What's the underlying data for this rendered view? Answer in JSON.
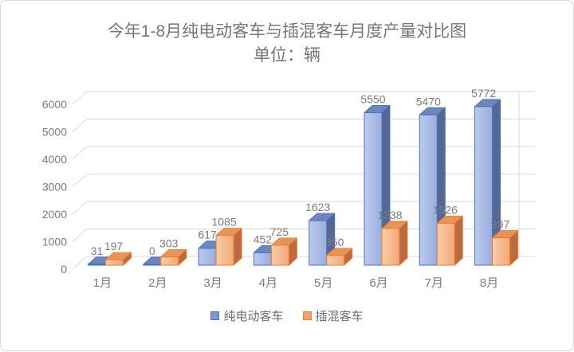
{
  "title": {
    "line1": "今年1-8月纯电动客车与插混客车月度产量对比图",
    "line2": "单位：辆"
  },
  "chart_data": {
    "type": "bar",
    "subtype": "3d-clustered-column",
    "title": "今年1-8月纯电动客车与插混客车月度产量对比图",
    "subtitle": "单位：辆",
    "categories": [
      "1月",
      "2月",
      "3月",
      "4月",
      "5月",
      "6月",
      "7月",
      "8月"
    ],
    "series": [
      {
        "name": "纯电动客车",
        "values": [
          31,
          0,
          617,
          452,
          1623,
          5550,
          5470,
          5772
        ],
        "colors": {
          "stroke": "#4472C4",
          "front_light": "#BCCAEE",
          "front_dark": "#99AEDD",
          "top": "#6D86BE",
          "side": "#56688F",
          "legend": "#7F99D0"
        }
      },
      {
        "name": "插混客车",
        "values": [
          197,
          303,
          1085,
          725,
          350,
          1338,
          1526,
          997
        ],
        "colors": {
          "stroke": "#ED7D31",
          "front_light": "#FACDA8",
          "front_dark": "#F3A876",
          "top": "#E8935A",
          "side": "#BC6A3F",
          "legend": "#F2A266"
        }
      }
    ],
    "xlabel": "",
    "ylabel": "",
    "ylim": [
      0,
      6000
    ],
    "yticks": [
      0,
      1000,
      2000,
      3000,
      4000,
      5000,
      6000
    ],
    "grid": true,
    "data_labels": true,
    "legend_position": "bottom",
    "axis_text_color": "#7b7b7b",
    "label_text_color": "#7b7b7b",
    "gridline_color": "#d9d9d9"
  }
}
